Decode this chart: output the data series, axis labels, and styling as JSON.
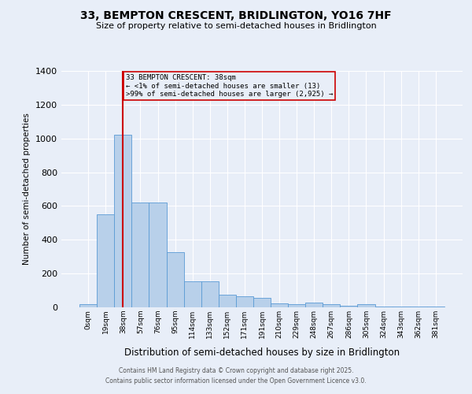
{
  "title": "33, BEMPTON CRESCENT, BRIDLINGTON, YO16 7HF",
  "subtitle": "Size of property relative to semi-detached houses in Bridlington",
  "xlabel": "Distribution of semi-detached houses by size in Bridlington",
  "ylabel": "Number of semi-detached properties",
  "footer_line1": "Contains HM Land Registry data © Crown copyright and database right 2025.",
  "footer_line2": "Contains public sector information licensed under the Open Government Licence v3.0.",
  "bin_labels": [
    "0sqm",
    "19sqm",
    "38sqm",
    "57sqm",
    "76sqm",
    "95sqm",
    "114sqm",
    "133sqm",
    "152sqm",
    "171sqm",
    "191sqm",
    "210sqm",
    "229sqm",
    "248sqm",
    "267sqm",
    "286sqm",
    "305sqm",
    "324sqm",
    "343sqm",
    "362sqm",
    "381sqm"
  ],
  "bar_values": [
    20,
    550,
    1020,
    620,
    620,
    325,
    155,
    155,
    75,
    65,
    55,
    25,
    20,
    30,
    20,
    10,
    20,
    5,
    5,
    5,
    5
  ],
  "bar_color": "#b8d0ea",
  "bar_edge_color": "#5b9bd5",
  "background_color": "#e8eef8",
  "grid_color": "#ffffff",
  "ylim": [
    0,
    1400
  ],
  "yticks": [
    0,
    200,
    400,
    600,
    800,
    1000,
    1200,
    1400
  ],
  "subject_bin_index": 2,
  "subject_label": "33 BEMPTON CRESCENT: 38sqm",
  "annotation_line1": "← <1% of semi-detached houses are smaller (13)",
  "annotation_line2": ">99% of semi-detached houses are larger (2,925) →",
  "redline_color": "#cc0000",
  "annotation_box_color": "#cc0000"
}
